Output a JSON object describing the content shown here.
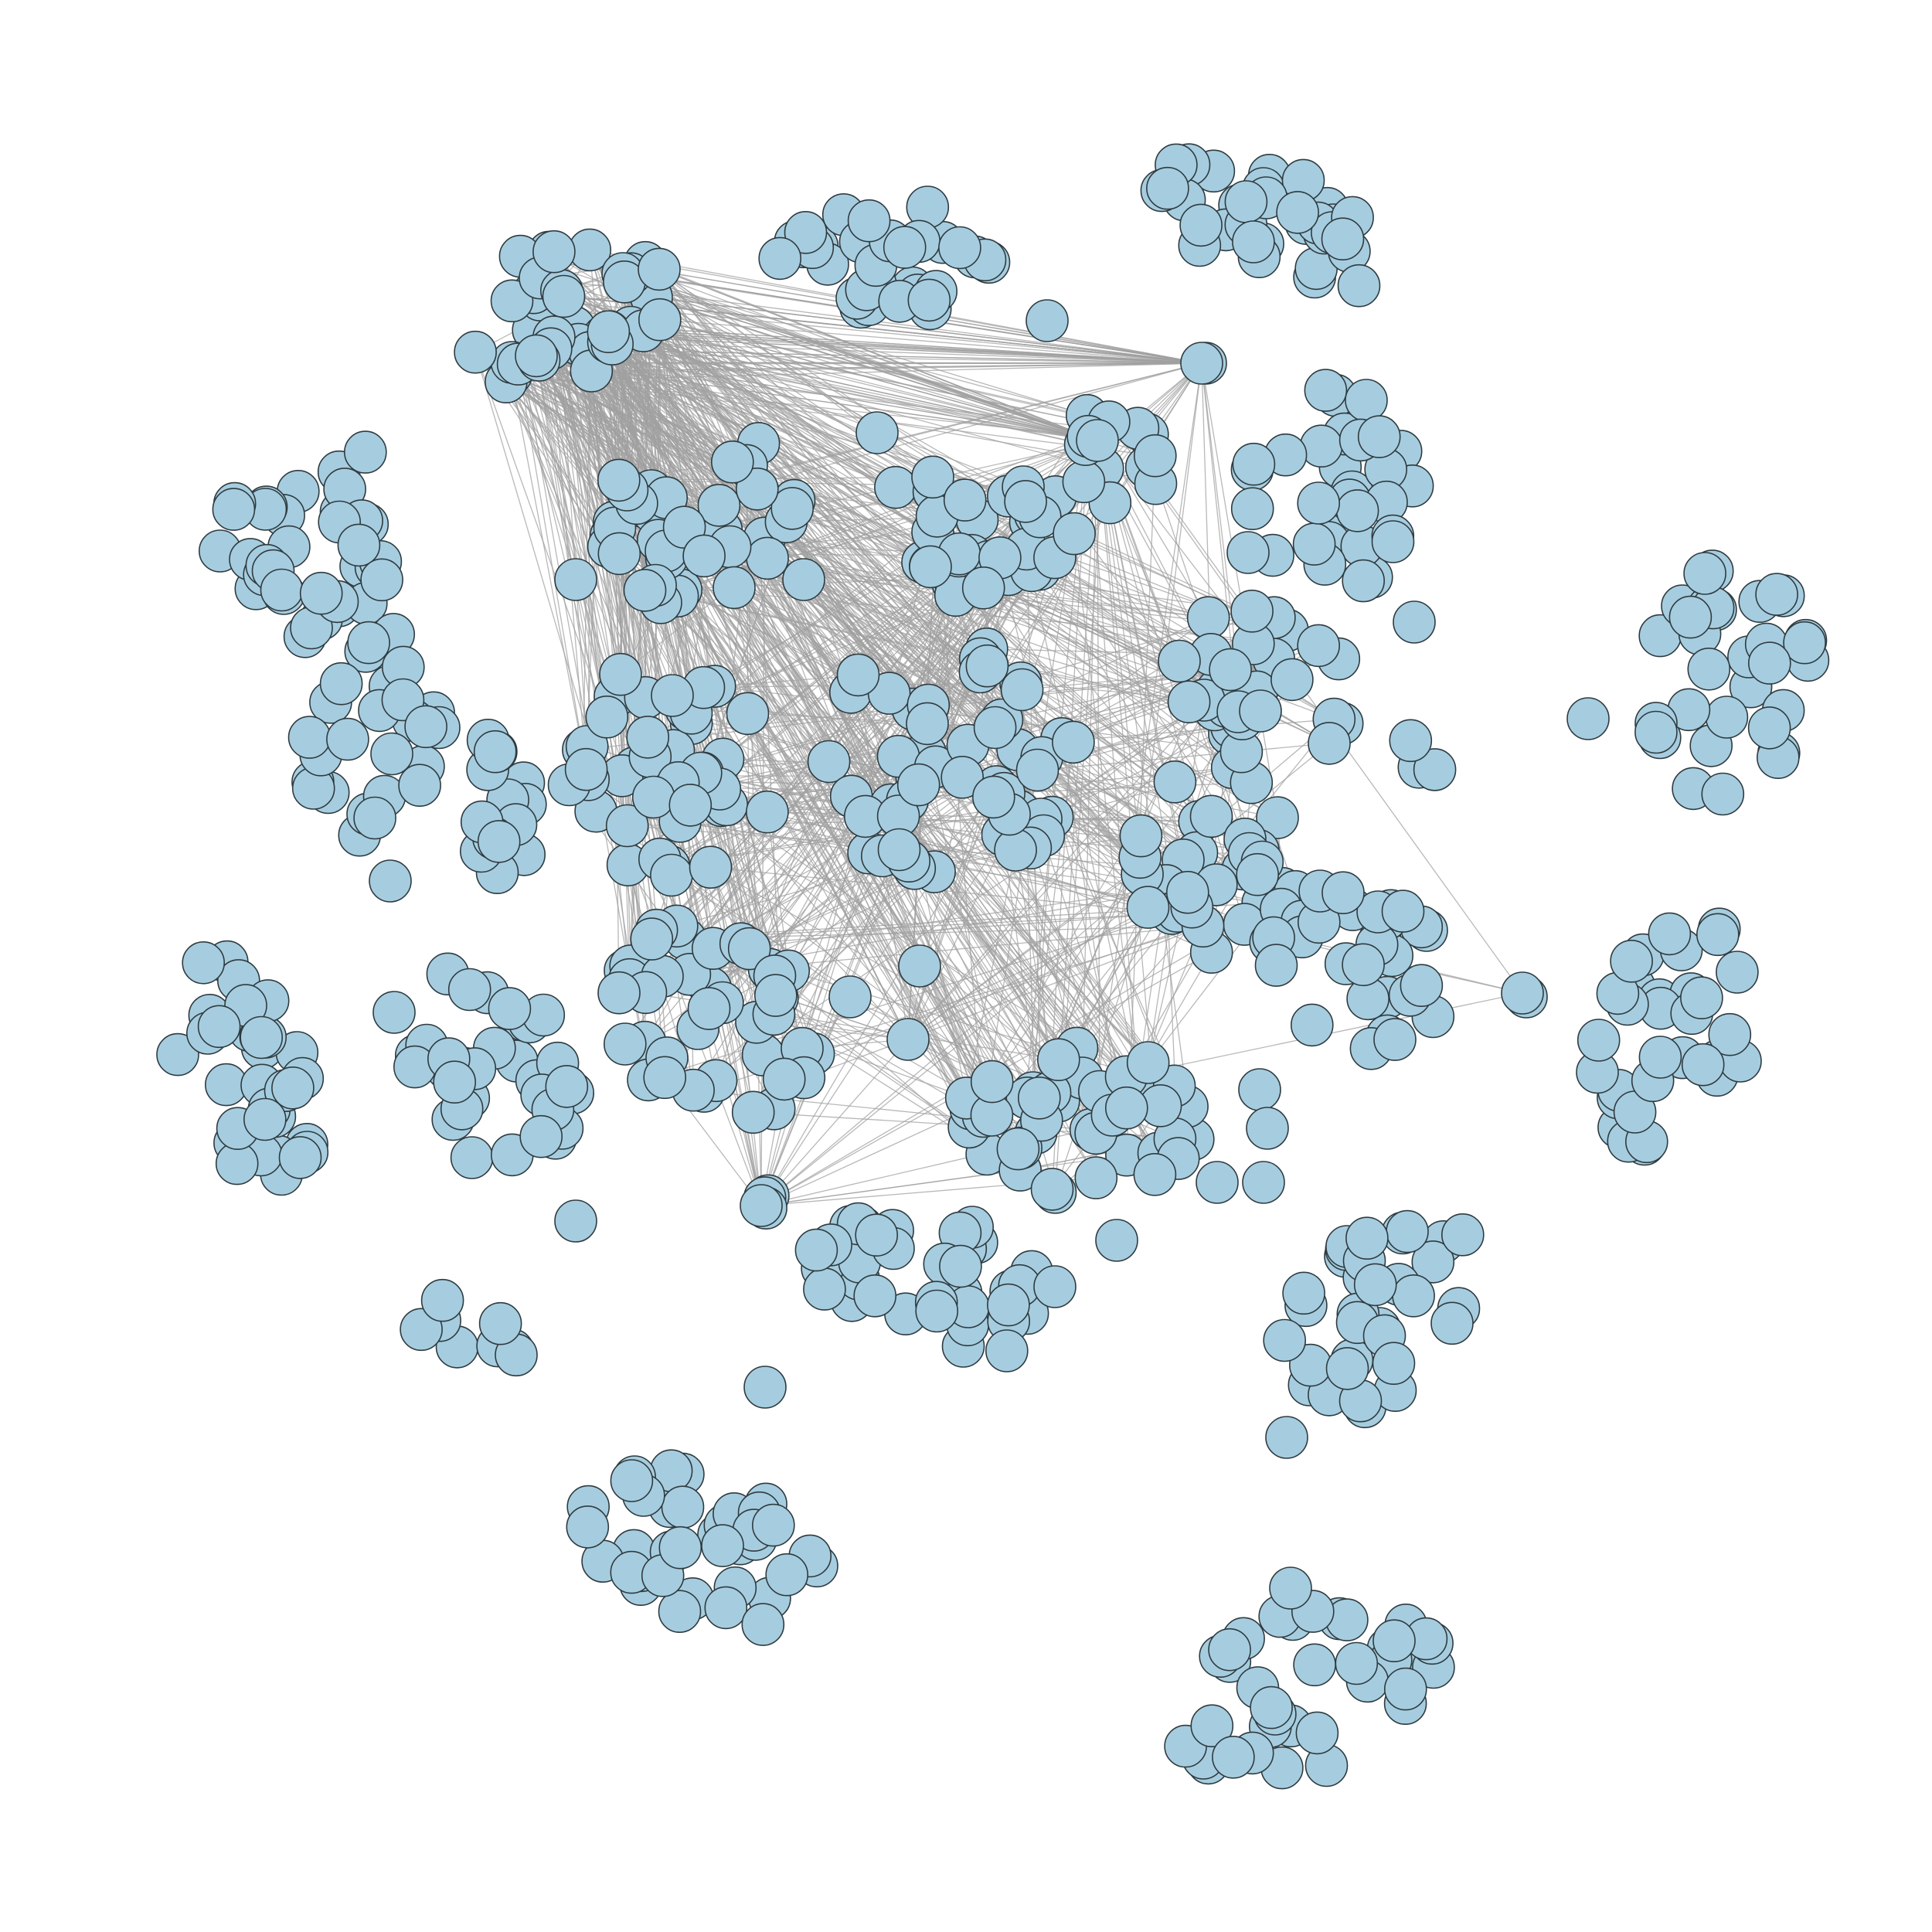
{
  "figure": {
    "type": "network-graph",
    "layout": "force-directed",
    "background_color": "#ffffff",
    "node_color": "#a6cddf",
    "node_outline_color": "#2f3b40",
    "edge_color": "#a0a0a0",
    "labels_shown": false,
    "cluster_count": 28
  }
}
